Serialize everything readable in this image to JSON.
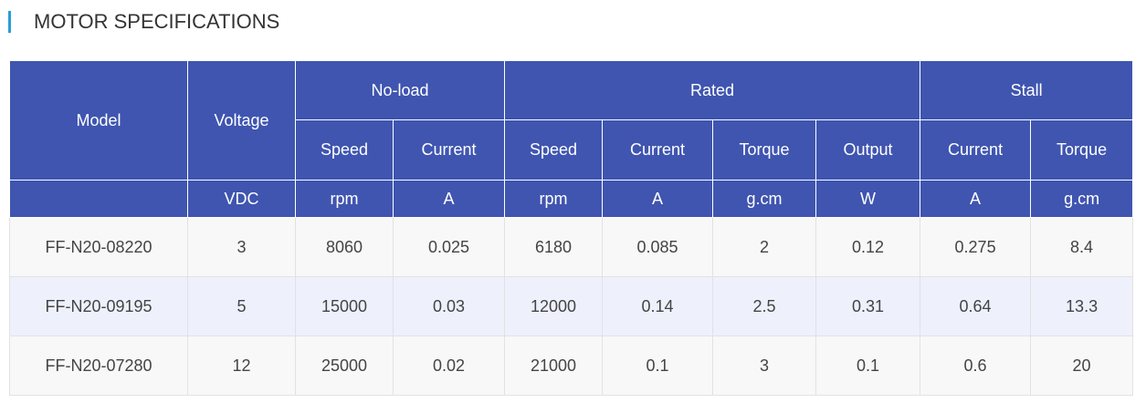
{
  "title": "MOTOR SPECIFICATIONS",
  "colors": {
    "accent": "#2a9fd6",
    "header_bg": "#3f55b0",
    "row_alt": "#eef0fc"
  },
  "header": {
    "model": "Model",
    "voltage": "Voltage",
    "noload": "No-load",
    "rated": "Rated",
    "stall": "Stall",
    "subheaders": [
      "Speed",
      "Current",
      "Speed",
      "Current",
      "Torque",
      "Output",
      "Current",
      "Torque"
    ],
    "units": [
      "VDC",
      "rpm",
      "A",
      "rpm",
      "A",
      "g.cm",
      "W",
      "A",
      "g.cm"
    ]
  },
  "rows": [
    [
      "FF-N20-08220",
      "3",
      "8060",
      "0.025",
      "6180",
      "0.085",
      "2",
      "0.12",
      "0.275",
      "8.4"
    ],
    [
      "FF-N20-09195",
      "5",
      "15000",
      "0.03",
      "12000",
      "0.14",
      "2.5",
      "0.31",
      "0.64",
      "13.3"
    ],
    [
      "FF-N20-07280",
      "12",
      "25000",
      "0.02",
      "21000",
      "0.1",
      "3",
      "0.1",
      "0.6",
      "20"
    ]
  ]
}
